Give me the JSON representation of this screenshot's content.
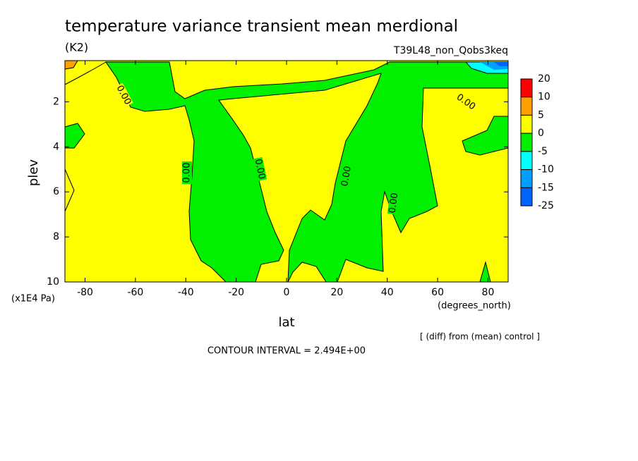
{
  "chart_data": {
    "type": "contour",
    "title": "temperature variance transient mean merdional",
    "units": "(K2)",
    "subtitle": "T39L48_non_Qobs3keq",
    "x_label": "lat",
    "x_units": "(degrees_north)",
    "y_label": "plev",
    "y_units": "(x1E4 Pa)",
    "note": "[ (diff) from (mean) control ]",
    "contour_interval": "CONTOUR INTERVAL = 2.494E+00",
    "xlim": [
      -88,
      88
    ],
    "ylim": [
      10,
      0.17
    ],
    "xticks": [
      -80,
      -60,
      -40,
      -20,
      0,
      20,
      40,
      60,
      80
    ],
    "yticks": [
      2,
      4,
      6,
      8,
      10
    ],
    "contour_labels": [
      "0.00",
      "0.00",
      "0.00",
      "0.00",
      "0.00",
      "0.00"
    ],
    "colorbar": {
      "levels": [
        20,
        10,
        5,
        0,
        -5,
        -10,
        -15,
        -25
      ],
      "colors": [
        "#ff0000",
        "#ffa000",
        "#ffff00",
        "#00f000",
        "#00ffff",
        "#00a0ff",
        "#0064ff"
      ]
    }
  }
}
